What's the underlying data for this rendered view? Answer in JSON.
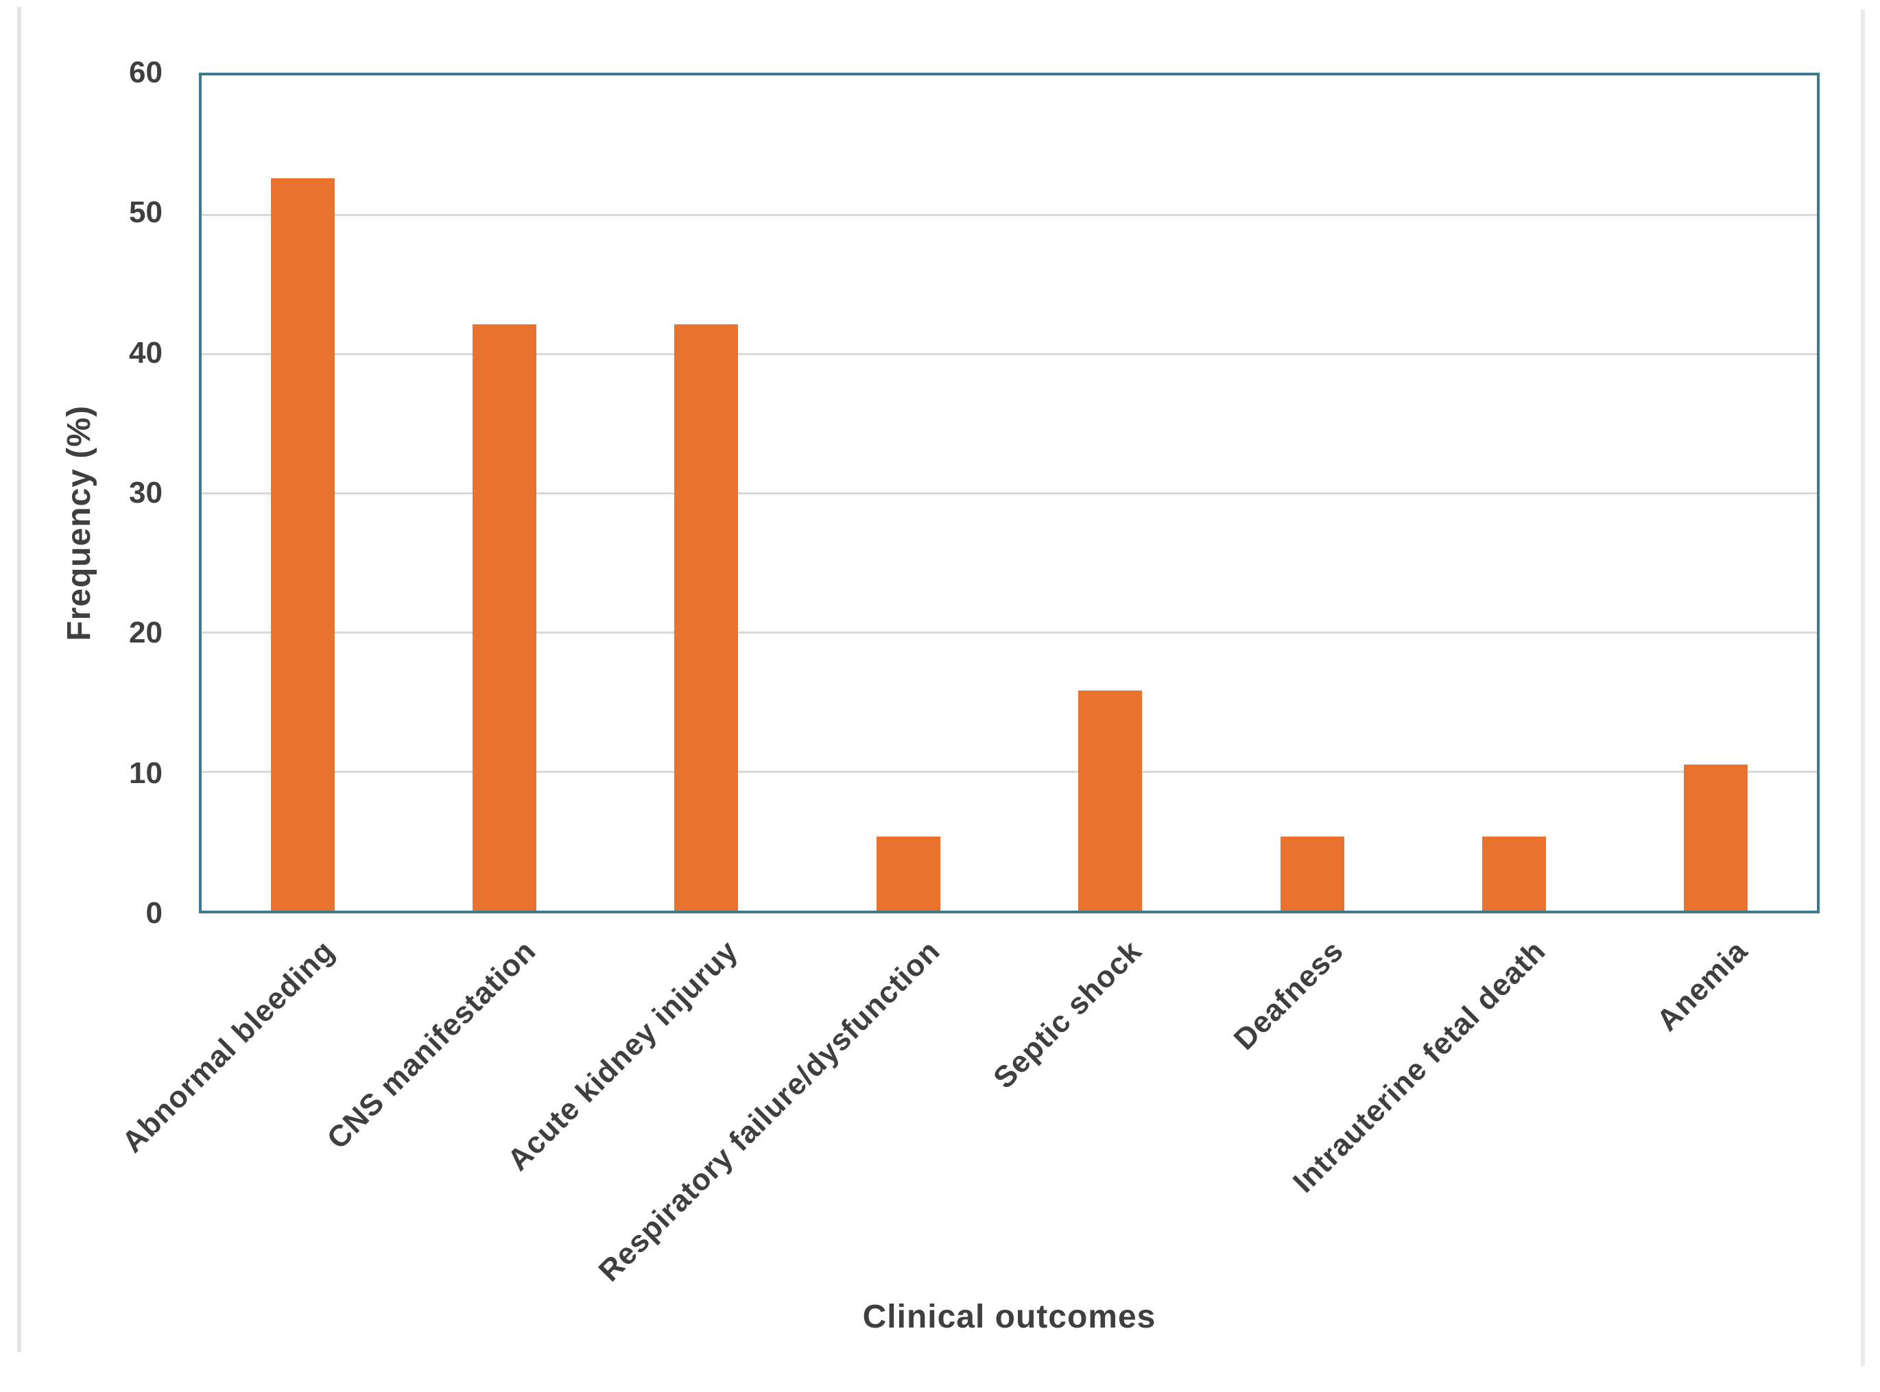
{
  "page": {
    "background": "#FFFFFF",
    "left_edge_line_color": "#E4E4E4",
    "right_edge_line_color": "#EAEAEA"
  },
  "chart_data": {
    "type": "bar",
    "title": "",
    "xlabel": "Clinical outcomes",
    "ylabel": "Frequency (%)",
    "categories": [
      "Abnormal bleeding",
      "CNS manifestation",
      "Acute kidney injuruy",
      "Respiratory failure/dysfunction",
      "Septic shock",
      "Deafness",
      "Intrauterine fetal death",
      "Anemia"
    ],
    "values": [
      52.6,
      42.1,
      42.1,
      5.3,
      15.8,
      5.3,
      5.3,
      10.5
    ],
    "ylim": [
      0,
      60
    ],
    "yticks": [
      0,
      10,
      20,
      30,
      40,
      50,
      60
    ],
    "grid": true,
    "legend": false,
    "bar_color": "#E8722E",
    "plot_border_color": "#3E7A8C",
    "gridline_color": "#D9D9D9",
    "text_color": "#3F3F3F"
  }
}
